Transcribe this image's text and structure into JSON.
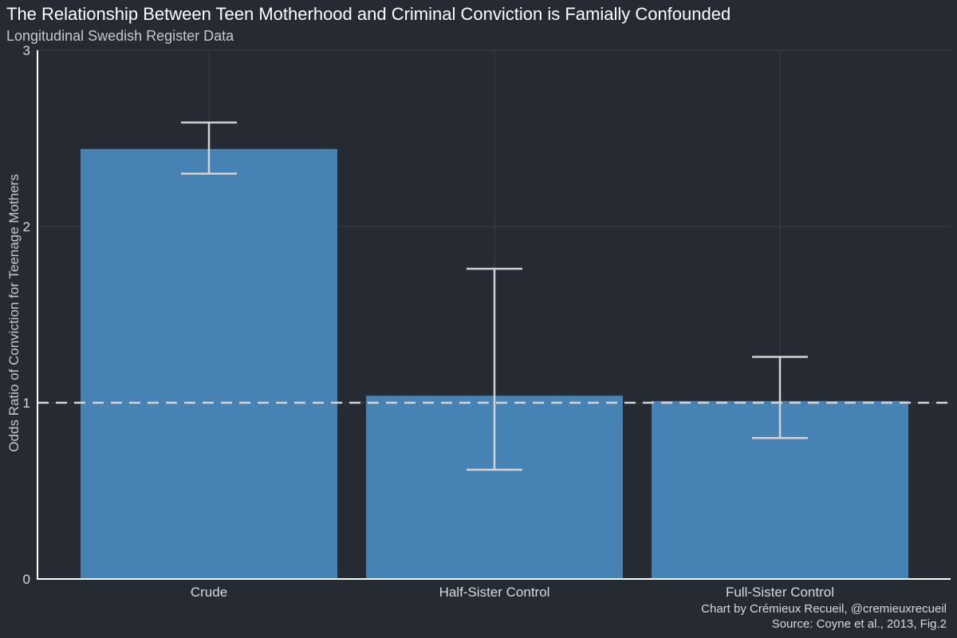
{
  "chart_data": {
    "type": "bar",
    "title": "The Relationship Between Teen Motherhood and Criminal Conviction is Famially Confounded",
    "subtitle": "Longitudinal Swedish Register Data",
    "xlabel": "",
    "ylabel": "Odds Ratio of Conviction for Teenage Mothers",
    "categories": [
      "Crude",
      "Half-Sister Control",
      "Full-Sister Control"
    ],
    "values": [
      2.44,
      1.04,
      1.01
    ],
    "error_low": [
      2.3,
      0.62,
      0.8
    ],
    "error_high": [
      2.59,
      1.76,
      1.26
    ],
    "reference_line": 1,
    "ylim": [
      0,
      3
    ],
    "yticks": [
      "0",
      "1",
      "2",
      "3"
    ],
    "grid": true,
    "colors": {
      "background": "#252a33",
      "bar": "#4682b4",
      "error_bar": "#d3d3d3",
      "reference_line": "#d3d3d3",
      "grid": "#3a3f48",
      "axis": "#ffffff"
    },
    "caption": [
      "Chart by Crémieux Recueil, @cremieuxrecueil",
      "Source: Coyne et al., 2013, Fig.2"
    ]
  }
}
